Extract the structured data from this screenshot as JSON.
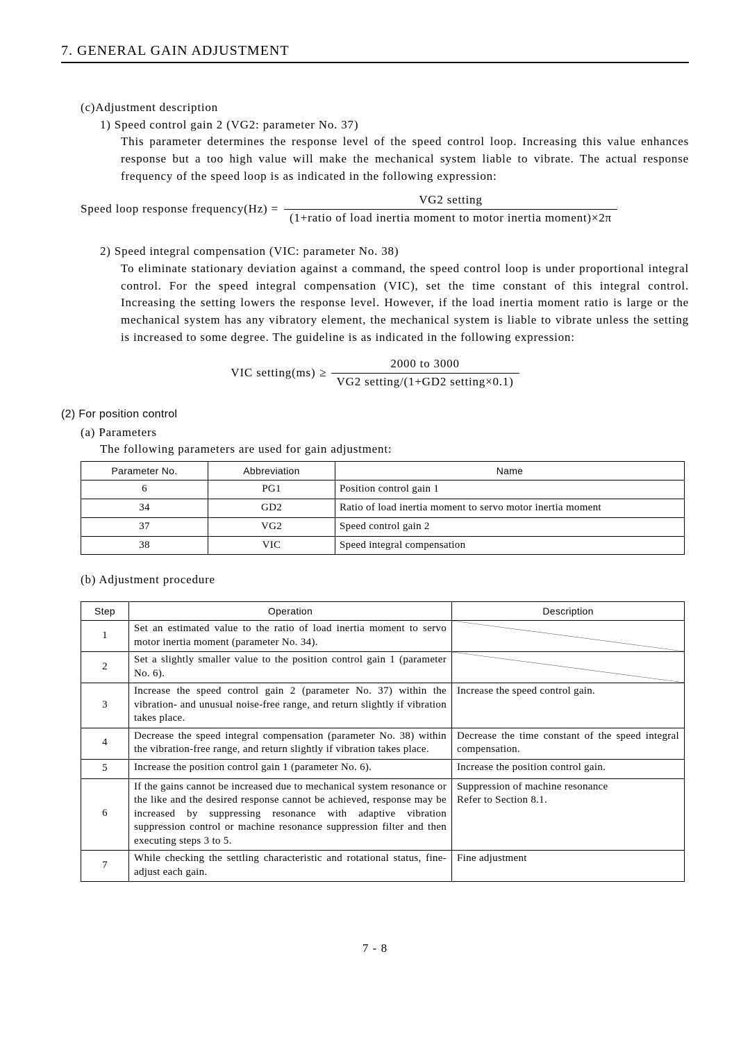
{
  "header": {
    "title": "7. GENERAL GAIN ADJUSTMENT"
  },
  "sectionC": {
    "label": "(c)Adjustment description",
    "item1": {
      "label": "1) Speed control gain 2 (VG2: parameter No. 37)",
      "body": "This parameter determines the response level of the speed control loop. Increasing this value enhances response but a too high value will make the mechanical system liable to vibrate. The actual response frequency of the speed loop is as indicated in the following expression:"
    },
    "eq1": {
      "lhs": "Speed loop response frequency(Hz) =",
      "num": "VG2 setting",
      "den": "(1+ratio of load inertia moment to motor inertia moment)×2π"
    },
    "item2": {
      "label": "2) Speed integral compensation (VIC: parameter No. 38)",
      "body": "To eliminate stationary deviation against a command, the speed control loop is under proportional integral control. For the speed integral compensation (VIC), set the time constant of this integral control. Increasing the setting lowers the response level. However, if the load inertia moment ratio is large or the mechanical system has any vibratory element, the mechanical system is liable to vibrate unless the setting is increased to some degree. The guideline is as indicated in the following expression:"
    },
    "eq2": {
      "lhs": "VIC setting(ms)",
      "rel": "≥",
      "num": "2000 to 3000",
      "den": "VG2 setting/(1+GD2 setting×0.1)"
    }
  },
  "section2": {
    "label": "(2) For position control",
    "paraA": {
      "label": "(a) Parameters",
      "body": "The following parameters are used for gain adjustment:"
    },
    "paramTable": {
      "columns": [
        "Parameter No.",
        "Abbreviation",
        "Name"
      ],
      "rows": [
        [
          "6",
          "PG1",
          "Position control gain 1"
        ],
        [
          "34",
          "GD2",
          "Ratio of load inertia moment to servo motor inertia moment"
        ],
        [
          "37",
          "VG2",
          "Speed control gain 2"
        ],
        [
          "38",
          "VIC",
          "Speed integral compensation"
        ]
      ]
    },
    "paraB": {
      "label": "(b) Adjustment procedure"
    },
    "procTable": {
      "columns": [
        "Step",
        "Operation",
        "Description"
      ],
      "rows": [
        {
          "step": "1",
          "op": "Set an estimated value to the ratio of load inertia moment to servo motor inertia moment (parameter No. 34).",
          "desc": "",
          "diag": true
        },
        {
          "step": "2",
          "op": "Set a slightly smaller value to the position control gain 1 (parameter No. 6).",
          "desc": "",
          "diag": true
        },
        {
          "step": "3",
          "op": "Increase the speed control gain 2 (parameter No. 37) within the vibration- and unusual noise-free range, and return slightly if vibration takes place.",
          "desc": "Increase the speed control gain."
        },
        {
          "step": "4",
          "op": "Decrease the speed integral compensation (parameter No. 38) within the vibration-free range, and return slightly if vibration takes place.",
          "desc": "Decrease the time constant of the speed integral compensation."
        },
        {
          "step": "5",
          "op": "Increase the position control gain 1 (parameter No. 6).",
          "desc": "Increase the position control gain."
        },
        {
          "step": "6",
          "op": "If the gains cannot be increased due to mechanical system resonance or the like and the desired response cannot be achieved, response may be increased by suppressing resonance with adaptive vibration suppression control or machine resonance suppression filter and then executing steps 3 to 5.",
          "desc": "Suppression of machine resonance\nRefer to Section 8.1."
        },
        {
          "step": "7",
          "op": "While checking the settling characteristic and rotational status, fine-adjust each gain.",
          "desc": "Fine adjustment"
        }
      ]
    }
  },
  "footer": {
    "pageNum": "7 -  8"
  }
}
